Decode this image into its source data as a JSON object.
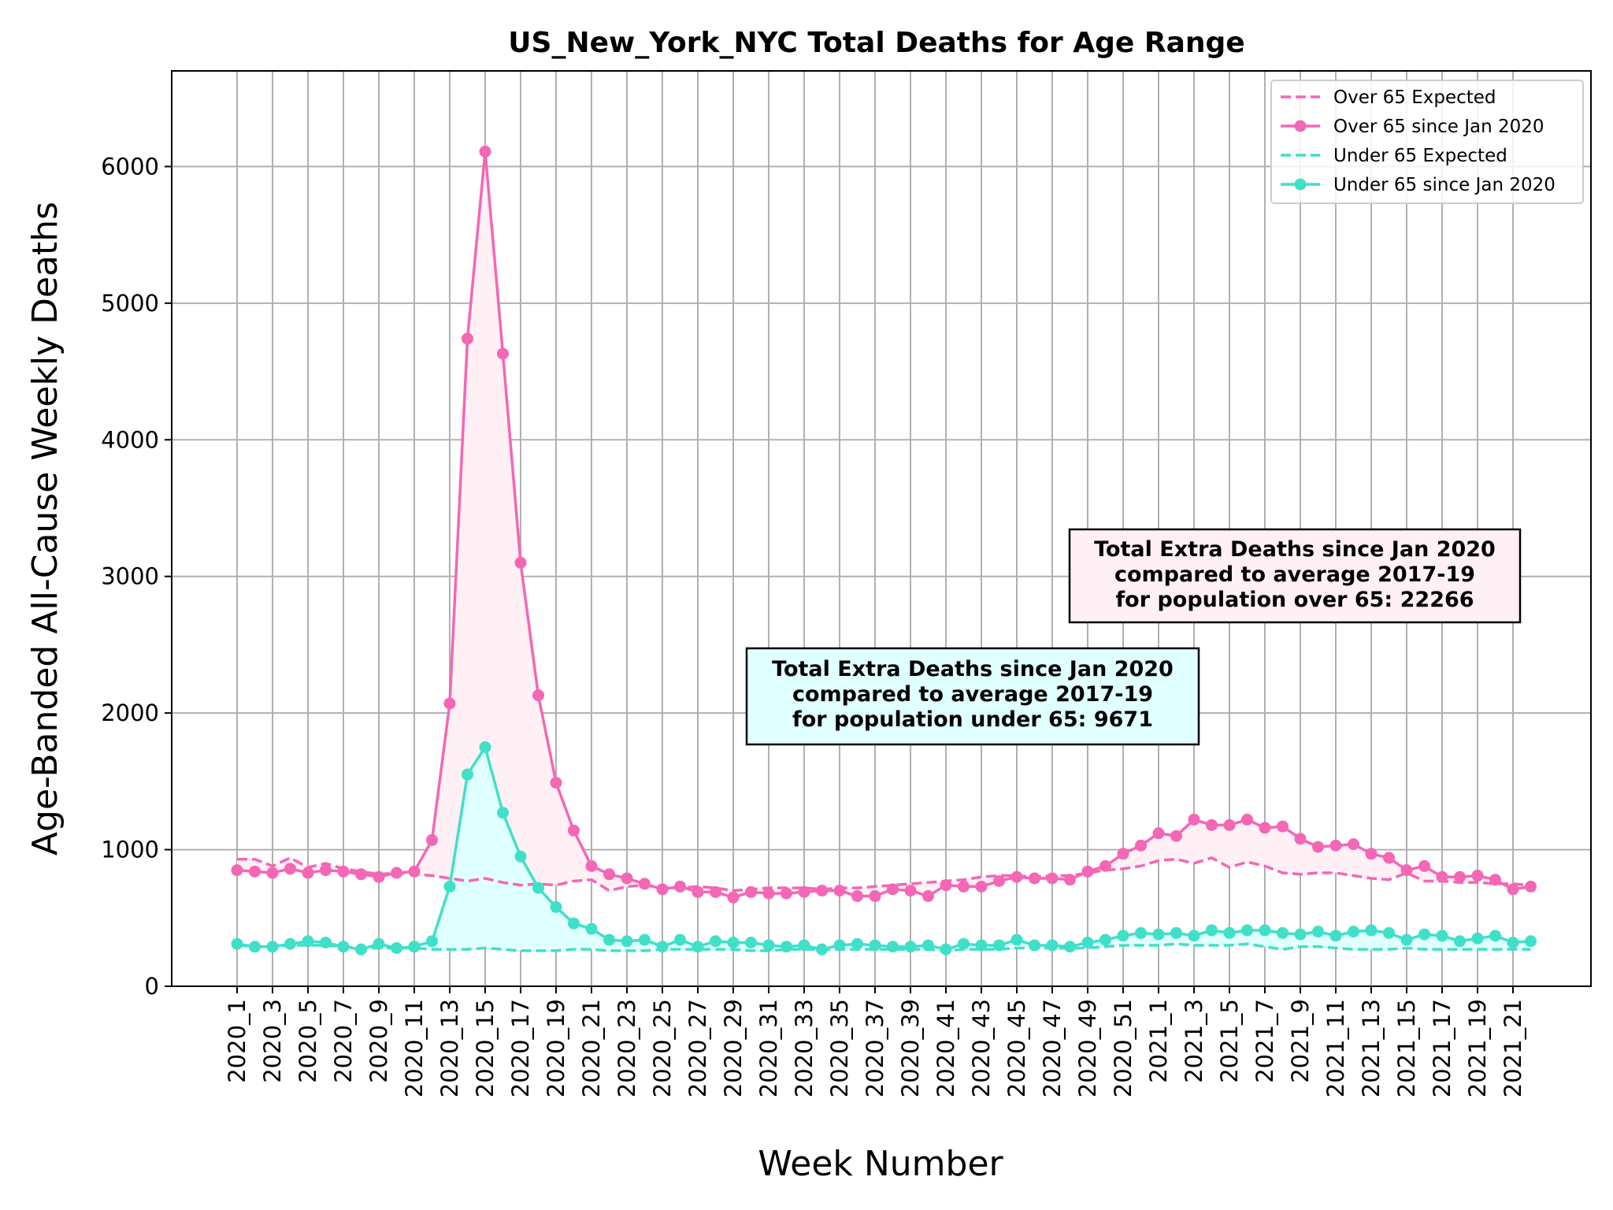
{
  "chart_data": {
    "type": "line",
    "title": "US_New_York_NYC Total Deaths for Age Range",
    "xlabel": "Week Number",
    "ylabel": "Age-Banded All-Cause Weekly Deaths",
    "ylim": [
      0,
      6700
    ],
    "yticks": [
      0,
      1000,
      2000,
      3000,
      4000,
      5000,
      6000
    ],
    "grid": true,
    "legend_position": "top-right",
    "x": [
      "2020_1",
      "2020_2",
      "2020_3",
      "2020_4",
      "2020_5",
      "2020_6",
      "2020_7",
      "2020_8",
      "2020_9",
      "2020_10",
      "2020_11",
      "2020_12",
      "2020_13",
      "2020_14",
      "2020_15",
      "2020_16",
      "2020_17",
      "2020_18",
      "2020_19",
      "2020_20",
      "2020_21",
      "2020_22",
      "2020_23",
      "2020_24",
      "2020_25",
      "2020_26",
      "2020_27",
      "2020_28",
      "2020_29",
      "2020_30",
      "2020_31",
      "2020_32",
      "2020_33",
      "2020_34",
      "2020_35",
      "2020_36",
      "2020_37",
      "2020_38",
      "2020_39",
      "2020_40",
      "2020_41",
      "2020_42",
      "2020_43",
      "2020_44",
      "2020_45",
      "2020_46",
      "2020_47",
      "2020_48",
      "2020_49",
      "2020_50",
      "2020_51",
      "2020_52",
      "2021_1",
      "2021_2",
      "2021_3",
      "2021_4",
      "2021_5",
      "2021_6",
      "2021_7",
      "2021_8",
      "2021_9",
      "2021_10",
      "2021_11",
      "2021_12",
      "2021_13",
      "2021_14",
      "2021_15",
      "2021_16",
      "2021_17",
      "2021_18",
      "2021_19",
      "2021_20",
      "2021_21",
      "2021_22"
    ],
    "xtick_labels": [
      "2020_1",
      "2020_3",
      "2020_5",
      "2020_7",
      "2020_9",
      "2020_11",
      "2020_13",
      "2020_15",
      "2020_17",
      "2020_19",
      "2020_21",
      "2020_23",
      "2020_25",
      "2020_27",
      "2020_29",
      "2020_31",
      "2020_33",
      "2020_35",
      "2020_37",
      "2020_39",
      "2020_41",
      "2020_43",
      "2020_45",
      "2020_47",
      "2020_49",
      "2020_51",
      "2021_1",
      "2021_3",
      "2021_5",
      "2021_7",
      "2021_9",
      "2021_11",
      "2021_13",
      "2021_15",
      "2021_17",
      "2021_19",
      "2021_21"
    ],
    "series": [
      {
        "name": "Over 65 Expected",
        "style": "dashed",
        "color": "#f467b5",
        "values": [
          930,
          930,
          880,
          940,
          870,
          900,
          860,
          840,
          820,
          830,
          820,
          810,
          790,
          770,
          790,
          760,
          740,
          750,
          740,
          770,
          780,
          700,
          730,
          740,
          720,
          720,
          730,
          720,
          700,
          710,
          720,
          720,
          720,
          710,
          720,
          720,
          730,
          740,
          750,
          760,
          770,
          780,
          800,
          810,
          810,
          800,
          810,
          810,
          830,
          850,
          860,
          880,
          920,
          930,
          900,
          940,
          870,
          910,
          880,
          830,
          820,
          830,
          830,
          810,
          790,
          780,
          830,
          770,
          770,
          760,
          760,
          750,
          750,
          740
        ]
      },
      {
        "name": "Over 65 since Jan 2020",
        "style": "solid-marker",
        "color": "#f467b5",
        "values": [
          850,
          840,
          830,
          860,
          830,
          850,
          840,
          820,
          800,
          830,
          840,
          1070,
          2070,
          4740,
          6110,
          4630,
          3100,
          2130,
          1490,
          1140,
          880,
          820,
          790,
          750,
          710,
          730,
          690,
          690,
          650,
          690,
          680,
          680,
          690,
          700,
          700,
          660,
          660,
          710,
          700,
          660,
          740,
          730,
          730,
          770,
          800,
          790,
          790,
          780,
          840,
          880,
          970,
          1030,
          1120,
          1100,
          1220,
          1180,
          1180,
          1220,
          1160,
          1170,
          1080,
          1020,
          1030,
          1040,
          970,
          940,
          850,
          880,
          800,
          800,
          810,
          780,
          710,
          730
        ]
      },
      {
        "name": "Under 65 Expected",
        "style": "dashed",
        "color": "#40e0c8",
        "values": [
          300,
          290,
          290,
          300,
          300,
          300,
          290,
          280,
          280,
          280,
          280,
          270,
          270,
          270,
          280,
          270,
          260,
          260,
          260,
          270,
          270,
          260,
          260,
          260,
          270,
          270,
          270,
          270,
          270,
          260,
          260,
          270,
          270,
          270,
          270,
          270,
          270,
          270,
          270,
          270,
          260,
          270,
          270,
          270,
          280,
          280,
          280,
          280,
          280,
          290,
          300,
          300,
          300,
          310,
          300,
          300,
          300,
          310,
          290,
          270,
          290,
          290,
          280,
          270,
          270,
          270,
          280,
          270,
          270,
          270,
          270,
          270,
          270,
          270
        ]
      },
      {
        "name": "Under 65 since Jan 2020",
        "style": "solid-marker",
        "color": "#40e0c8",
        "values": [
          310,
          290,
          290,
          310,
          330,
          320,
          290,
          270,
          310,
          280,
          290,
          330,
          730,
          1550,
          1750,
          1270,
          950,
          720,
          580,
          460,
          420,
          340,
          330,
          340,
          290,
          340,
          290,
          330,
          320,
          320,
          300,
          290,
          300,
          270,
          300,
          310,
          300,
          290,
          290,
          300,
          270,
          310,
          300,
          300,
          340,
          300,
          300,
          290,
          320,
          340,
          370,
          390,
          380,
          390,
          370,
          410,
          390,
          410,
          410,
          390,
          380,
          400,
          370,
          400,
          410,
          390,
          340,
          380,
          370,
          330,
          350,
          370,
          320,
          330
        ]
      }
    ],
    "annotations": [
      {
        "lines": [
          "Total Extra Deaths since Jan 2020",
          "compared to average 2017-19",
          "for population over 65: 22266"
        ],
        "facecolor": "#fff0f5"
      },
      {
        "lines": [
          "Total Extra Deaths since Jan 2020",
          "compared to average 2017-19",
          "for population under 65: 9671"
        ],
        "facecolor": "#e0ffff"
      }
    ]
  }
}
